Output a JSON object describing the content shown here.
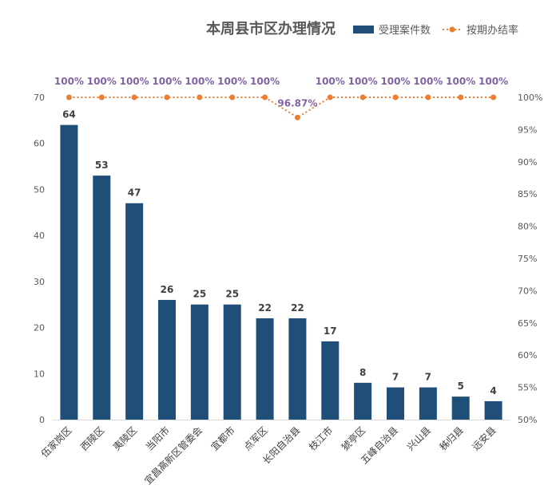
{
  "chart_data": {
    "type": "bar",
    "title": "本周县市区办理情况",
    "legend": [
      {
        "name": "受理案件数",
        "color": "#1f4e79"
      },
      {
        "name": "按期办结率",
        "color": "#ed7d31"
      }
    ],
    "legend_placement": "top-right",
    "categories": [
      "伍家岗区",
      "西陵区",
      "夷陵区",
      "当阳市",
      "宜昌高新区管委会",
      "宜都市",
      "点军区",
      "长阳自治县",
      "枝江市",
      "猇亭区",
      "五峰自治县",
      "兴山县",
      "秭归县",
      "远安县"
    ],
    "series": [
      {
        "name": "受理案件数",
        "type": "bar",
        "axis": "left",
        "values": [
          64,
          53,
          47,
          26,
          25,
          25,
          22,
          22,
          17,
          8,
          7,
          7,
          5,
          4
        ]
      },
      {
        "name": "按期办结率",
        "type": "line",
        "axis": "right",
        "values": [
          100,
          100,
          100,
          100,
          100,
          100,
          100,
          96.87,
          100,
          100,
          100,
          100,
          100,
          100
        ],
        "labels": [
          "100%",
          "100%",
          "100%",
          "100%",
          "100%",
          "100%",
          "100%",
          "96.87%",
          "100%",
          "100%",
          "100%",
          "100%",
          "100%",
          "100%"
        ]
      }
    ],
    "y_left": {
      "min": 0,
      "max": 70,
      "ticks": [
        "0",
        "10",
        "20",
        "30",
        "40",
        "50",
        "60",
        "70"
      ]
    },
    "y_right": {
      "min": 50,
      "max": 100,
      "ticks": [
        "50%",
        "55%",
        "60%",
        "65%",
        "70%",
        "75%",
        "80%",
        "85%",
        "90%",
        "95%",
        "100%"
      ]
    },
    "grid": false
  }
}
